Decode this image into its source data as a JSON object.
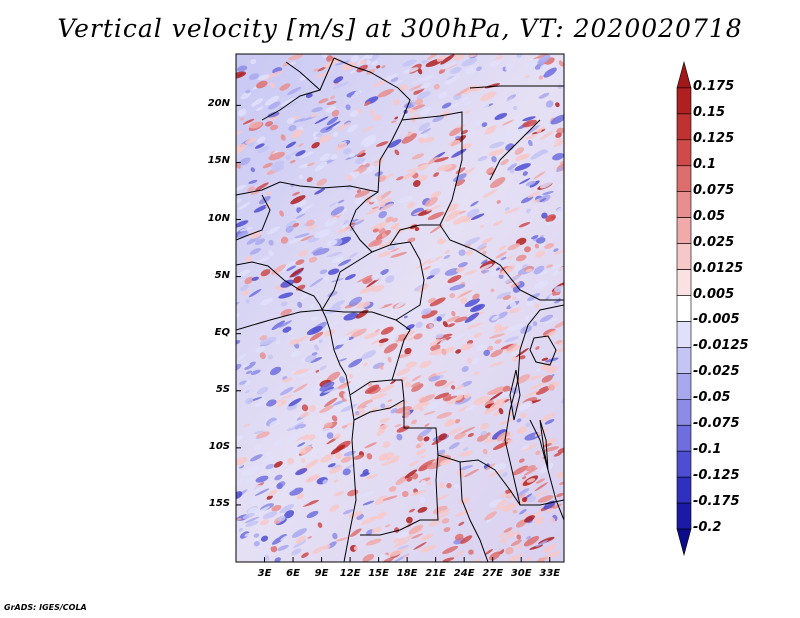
{
  "title": "Vertical velocity [m/s] at 300hPa, VT: 2020020718",
  "credit": "GrADS: IGES/COLA",
  "map": {
    "lat_labels": [
      "20N",
      "15N",
      "10N",
      "5N",
      "EQ",
      "5S",
      "10S",
      "15S"
    ],
    "lat_values": [
      20,
      15,
      10,
      5,
      0,
      -5,
      -10,
      -15
    ],
    "lon_labels": [
      "3E",
      "6E",
      "9E",
      "12E",
      "15E",
      "18E",
      "21E",
      "24E",
      "27E",
      "30E",
      "33E"
    ],
    "lon_values": [
      3,
      6,
      9,
      12,
      15,
      18,
      21,
      24,
      27,
      30,
      33
    ],
    "lat_range": [
      -20,
      24.5
    ],
    "lon_range": [
      0,
      34.5
    ]
  },
  "colorbar": {
    "labels": [
      "0.175",
      "0.15",
      "0.125",
      "0.1",
      "0.075",
      "0.05",
      "0.025",
      "0.0125",
      "0.005",
      "-0.005",
      "-0.0125",
      "-0.025",
      "-0.05",
      "-0.075",
      "-0.1",
      "-0.125",
      "-0.175",
      "-0.2"
    ],
    "colors": [
      "#a01818",
      "#b02020",
      "#c03232",
      "#cf4a4a",
      "#dd6e6e",
      "#e88e8e",
      "#f0aaaa",
      "#f7c8c8",
      "#fbe2e2",
      "#ffffff",
      "#e0e0fb",
      "#c4c4f5",
      "#a8a8ee",
      "#8c8ce6",
      "#6e6ede",
      "#4e4ed2",
      "#3030c0",
      "#1a1aa6",
      "#0c0c8a"
    ]
  }
}
